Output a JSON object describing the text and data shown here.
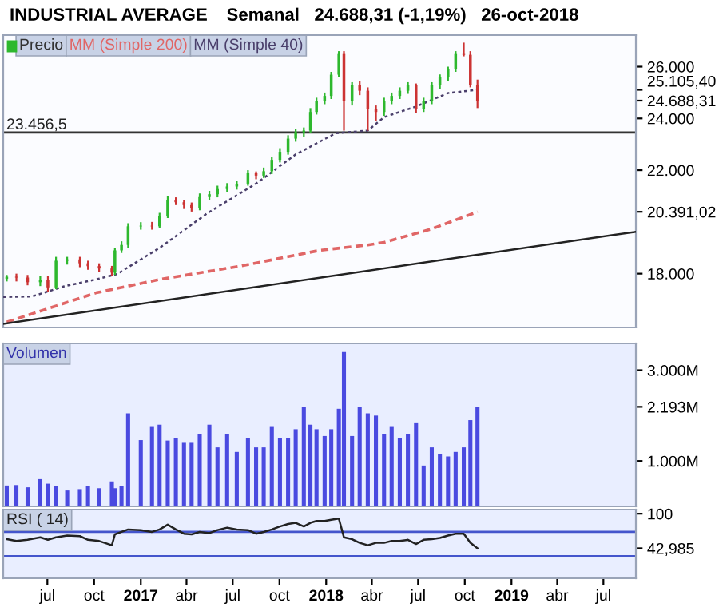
{
  "chart_data": [
    {
      "type": "candlestick",
      "title": "INDUSTRIAL AVERAGE",
      "subtitle": "Semanal   24.688,31 (-1,19%)   26-oct-2018",
      "legend": "top left",
      "tick_labels": "y",
      "x": [
        "2016-04-12",
        "2016-05-01",
        "2016-05-23",
        "2016-06-17",
        "2016-07-02",
        "2016-07-18",
        "2016-08-09",
        "2016-09-03",
        "2016-09-19",
        "2016-10-11",
        "2016-11-05",
        "2016-11-11",
        "2016-11-24",
        "2016-12-07",
        "2017-01-01",
        "2017-01-23",
        "2017-02-07",
        "2017-02-23",
        "2017-03-11",
        "2017-03-27",
        "2017-04-11",
        "2017-04-27",
        "2017-05-16",
        "2017-06-01",
        "2017-06-20",
        "2017-07-09",
        "2017-07-31",
        "2017-08-16",
        "2017-08-31",
        "2017-09-16",
        "2017-10-02",
        "2017-10-18",
        "2017-11-02",
        "2017-11-18",
        "2017-12-01",
        "2017-12-13",
        "2017-12-29",
        "2018-01-11",
        "2018-01-26",
        "2018-02-05",
        "2018-02-21",
        "2018-03-08",
        "2018-03-24",
        "2018-04-09",
        "2018-04-25",
        "2018-05-10",
        "2018-05-26",
        "2018-06-11",
        "2018-06-27",
        "2018-07-12",
        "2018-07-28",
        "2018-08-13",
        "2018-08-29",
        "2018-09-13",
        "2018-09-29",
        "2018-10-12",
        "2018-10-26"
      ],
      "series": [
        {
          "name": "Precio",
          "type": "candlestick",
          "ohlc": [
            [
              17800,
              17950,
              17700,
              17880
            ],
            [
              17880,
              18000,
              17700,
              17850
            ],
            [
              17850,
              17950,
              17550,
              17670
            ],
            [
              17670,
              17900,
              17520,
              17770
            ],
            [
              17770,
              17900,
              17300,
              17470
            ],
            [
              17470,
              18650,
              17400,
              18500
            ],
            [
              18500,
              18650,
              18350,
              18550
            ],
            [
              18550,
              18650,
              18250,
              18400
            ],
            [
              18400,
              18500,
              18150,
              18290
            ],
            [
              18290,
              18400,
              18050,
              18200
            ],
            [
              18200,
              18300,
              17900,
              18040
            ],
            [
              18040,
              19000,
              17950,
              18900
            ],
            [
              18900,
              19250,
              18800,
              19110
            ],
            [
              19110,
              19950,
              19000,
              19830
            ],
            [
              19830,
              19990,
              19700,
              19850
            ],
            [
              19850,
              20000,
              19700,
              19830
            ],
            [
              19830,
              20350,
              19750,
              20240
            ],
            [
              20240,
              21000,
              20150,
              20860
            ],
            [
              20860,
              20950,
              20650,
              20760
            ],
            [
              20760,
              20850,
              20500,
              20650
            ],
            [
              20650,
              20750,
              20400,
              20550
            ],
            [
              20550,
              21100,
              20450,
              20960
            ],
            [
              20960,
              21200,
              20850,
              21070
            ],
            [
              21070,
              21400,
              20950,
              21270
            ],
            [
              21270,
              21500,
              21150,
              21370
            ],
            [
              21370,
              21600,
              21250,
              21480
            ],
            [
              21480,
              22000,
              21400,
              21890
            ],
            [
              21890,
              21950,
              21650,
              21790
            ],
            [
              21790,
              22100,
              21700,
              21960
            ],
            [
              21960,
              22500,
              21850,
              22400
            ],
            [
              22400,
              22850,
              22300,
              22710
            ],
            [
              22710,
              23350,
              22600,
              23220
            ],
            [
              23220,
              23600,
              23100,
              23470
            ],
            [
              23470,
              23650,
              23300,
              23530
            ],
            [
              23530,
              24400,
              23450,
              24250
            ],
            [
              24250,
              24800,
              24150,
              24670
            ],
            [
              24670,
              25000,
              24550,
              24870
            ],
            [
              24870,
              25800,
              24750,
              25690
            ],
            [
              25690,
              26600,
              25600,
              26520
            ],
            [
              26520,
              26600,
              23530,
              24670
            ],
            [
              24670,
              25400,
              24500,
              25280
            ],
            [
              25280,
              25450,
              24900,
              25070
            ],
            [
              25070,
              25200,
              23530,
              24360
            ],
            [
              24360,
              24500,
              23900,
              24250
            ],
            [
              24250,
              24800,
              24100,
              24670
            ],
            [
              24670,
              25000,
              24550,
              24870
            ],
            [
              24870,
              25200,
              24750,
              25070
            ],
            [
              25070,
              25400,
              24950,
              25280
            ],
            [
              25280,
              25350,
              24200,
              24360
            ],
            [
              24360,
              24800,
              24250,
              24670
            ],
            [
              24670,
              25400,
              24550,
              25280
            ],
            [
              25280,
              25700,
              25150,
              25590
            ],
            [
              25590,
              26000,
              25450,
              25900
            ],
            [
              25900,
              26600,
              25800,
              26520
            ],
            [
              26520,
              26930,
              26400,
              26460
            ],
            [
              26460,
              26600,
              25200,
              25280
            ],
            [
              25280,
              25500,
              24400,
              24688.31
            ]
          ],
          "colors": [
            "#2eb82e",
            "#cc3333",
            "#cc3333",
            "#2eb82e",
            "#cc3333",
            "#2eb82e",
            "#2eb82e",
            "#cc3333",
            "#cc3333",
            "#cc3333",
            "#cc3333",
            "#2eb82e",
            "#2eb82e",
            "#2eb82e",
            "#2eb82e",
            "#cc3333",
            "#2eb82e",
            "#2eb82e",
            "#cc3333",
            "#cc3333",
            "#cc3333",
            "#2eb82e",
            "#2eb82e",
            "#2eb82e",
            "#2eb82e",
            "#2eb82e",
            "#2eb82e",
            "#cc3333",
            "#2eb82e",
            "#2eb82e",
            "#2eb82e",
            "#2eb82e",
            "#2eb82e",
            "#2eb82e",
            "#2eb82e",
            "#2eb82e",
            "#2eb82e",
            "#2eb82e",
            "#2eb82e",
            "#cc3333",
            "#2eb82e",
            "#cc3333",
            "#cc3333",
            "#cc3333",
            "#2eb82e",
            "#2eb82e",
            "#2eb82e",
            "#2eb82e",
            "#cc3333",
            "#2eb82e",
            "#2eb82e",
            "#2eb82e",
            "#2eb82e",
            "#2eb82e",
            "#cc3333",
            "#cc3333",
            "#cc3333"
          ]
        },
        {
          "name": "MM (Simple 200)",
          "type": "line",
          "color": "#e06666",
          "line_style": "dashed",
          "x": [
            "2016-04-12",
            "2016-10-05",
            "2017-02-08",
            "2017-07-15",
            "2017-12-19",
            "2018-03-24",
            "2018-04-25",
            "2018-07-28",
            "2018-10-26"
          ],
          "values": [
            16130,
            17260,
            17780,
            18290,
            18900,
            19110,
            19210,
            19730,
            20391.02
          ]
        },
        {
          "name": "MM (Simple 40)",
          "type": "line",
          "color": "#4a3f6b",
          "line_style": "dotted",
          "x": [
            "2016-04-05",
            "2016-06-01",
            "2016-08-03",
            "2016-10-05",
            "2016-11-15",
            "2017-02-08",
            "2017-05-13",
            "2017-08-16",
            "2017-11-02",
            "2018-01-20",
            "2018-03-24",
            "2018-04-25",
            "2018-06-27",
            "2018-08-29",
            "2018-10-26"
          ],
          "values": [
            17100,
            17120,
            17510,
            17780,
            17980,
            19010,
            20350,
            21480,
            22610,
            23430,
            23530,
            24050,
            24460,
            24980,
            25105.4
          ]
        },
        {
          "type": "line",
          "color": "#222222",
          "line_style": "solid",
          "x": [
            "2016-04-05",
            "2019-09-03"
          ],
          "values": [
            16060,
            19620
          ]
        }
      ],
      "ref_lines": [
        {
          "axis": "y",
          "value": 23456.5,
          "label": "23.456,5",
          "color": "#333333"
        }
      ],
      "xlim": [
        "2016-04-05",
        "2019-09-03"
      ],
      "ylim": [
        15920,
        27220
      ],
      "yticks": [
        {
          "value": 18000,
          "label": "18.000"
        },
        {
          "value": 20391.02,
          "label": "20.391,02"
        },
        {
          "value": 22000,
          "label": "22.000"
        },
        {
          "value": 24000,
          "label": "24.000"
        },
        {
          "value": 24688.31,
          "label": "24.688,31"
        },
        {
          "value": 25105.4,
          "label": "25.105,40"
        },
        {
          "value": 26000,
          "label": "26.000"
        }
      ]
    },
    {
      "type": "bar",
      "legend": "top left",
      "tick_labels": "y",
      "x": [
        "2016-04-12",
        "2016-05-01",
        "2016-05-23",
        "2016-06-17",
        "2016-07-02",
        "2016-07-18",
        "2016-08-09",
        "2016-09-03",
        "2016-09-19",
        "2016-10-11",
        "2016-11-05",
        "2016-11-11",
        "2016-11-24",
        "2016-12-07",
        "2017-01-01",
        "2017-01-23",
        "2017-02-07",
        "2017-02-23",
        "2017-03-11",
        "2017-03-27",
        "2017-04-11",
        "2017-04-27",
        "2017-05-16",
        "2017-06-01",
        "2017-06-20",
        "2017-07-09",
        "2017-07-31",
        "2017-08-16",
        "2017-08-31",
        "2017-09-16",
        "2017-10-02",
        "2017-10-18",
        "2017-11-02",
        "2017-11-18",
        "2017-12-01",
        "2017-12-13",
        "2017-12-29",
        "2018-01-11",
        "2018-01-26",
        "2018-02-05",
        "2018-02-21",
        "2018-03-08",
        "2018-03-24",
        "2018-04-09",
        "2018-04-25",
        "2018-05-10",
        "2018-05-26",
        "2018-06-11",
        "2018-06-27",
        "2018-07-12",
        "2018-07-28",
        "2018-08-13",
        "2018-08-29",
        "2018-09-13",
        "2018-09-29",
        "2018-10-12",
        "2018-10-26"
      ],
      "series": [
        {
          "name": "Volumen",
          "color": "#4a4ae0",
          "values": [
            460,
            470,
            420,
            600,
            500,
            450,
            350,
            380,
            450,
            400,
            550,
            400,
            450,
            2050,
            1460,
            1750,
            1800,
            1450,
            1500,
            1400,
            1400,
            1600,
            1800,
            1300,
            1600,
            1200,
            1500,
            1300,
            1300,
            1750,
            1500,
            1500,
            1700,
            2200,
            1800,
            1700,
            1550,
            1700,
            2150,
            3400,
            1550,
            2200,
            2050,
            2000,
            1600,
            1750,
            1500,
            1600,
            1850,
            900,
            1300,
            1150,
            1100,
            1200,
            1300,
            1900,
            2193
          ]
        }
      ],
      "xlim": [
        "2016-04-05",
        "2019-09-03"
      ],
      "ylim": [
        0,
        3590
      ],
      "yticks": [
        {
          "value": 1000,
          "label": "1.000M"
        },
        {
          "value": 2193,
          "label": "2.193M"
        },
        {
          "value": 3000,
          "label": "3.000M"
        }
      ]
    },
    {
      "type": "line",
      "legend": "top left",
      "x": [
        "2016-04-12",
        "2016-05-01",
        "2016-05-23",
        "2016-06-17",
        "2016-07-02",
        "2016-07-18",
        "2016-08-09",
        "2016-09-03",
        "2016-09-19",
        "2016-10-11",
        "2016-11-05",
        "2016-11-11",
        "2016-11-24",
        "2016-12-07",
        "2017-01-01",
        "2017-01-23",
        "2017-02-07",
        "2017-02-23",
        "2017-03-11",
        "2017-03-27",
        "2017-04-11",
        "2017-04-27",
        "2017-05-16",
        "2017-06-01",
        "2017-06-20",
        "2017-07-09",
        "2017-07-31",
        "2017-08-16",
        "2017-08-31",
        "2017-09-16",
        "2017-10-02",
        "2017-10-18",
        "2017-11-02",
        "2017-11-18",
        "2017-12-01",
        "2017-12-13",
        "2017-12-29",
        "2018-01-11",
        "2018-01-26",
        "2018-02-05",
        "2018-02-21",
        "2018-03-08",
        "2018-03-24",
        "2018-04-09",
        "2018-04-25",
        "2018-05-10",
        "2018-05-26",
        "2018-06-11",
        "2018-06-27",
        "2018-07-12",
        "2018-07-28",
        "2018-08-13",
        "2018-08-29",
        "2018-09-13",
        "2018-09-29",
        "2018-10-12",
        "2018-10-26"
      ],
      "series": [
        {
          "name": "RSI ( 14)",
          "color": "#222222",
          "values": [
            58,
            55,
            57,
            61,
            57,
            61,
            64,
            63,
            57,
            55,
            48,
            66,
            70,
            74,
            73,
            70,
            74,
            82,
            74,
            67,
            66,
            70,
            68,
            73,
            77,
            74,
            73,
            67,
            70,
            74,
            79,
            83,
            85,
            79,
            85,
            88,
            88,
            90,
            92,
            61,
            58,
            52,
            48,
            52,
            52,
            55,
            55,
            57,
            50,
            57,
            58,
            60,
            64,
            67,
            67,
            52,
            42.985
          ]
        }
      ],
      "ref_lines": [
        {
          "axis": "y",
          "value": 70,
          "color": "#4455cc"
        },
        {
          "axis": "y",
          "value": 30,
          "color": "#4455cc"
        }
      ],
      "xlim": [
        "2016-04-05",
        "2019-09-03"
      ],
      "ylim": [
        -6.5,
        106.8
      ],
      "yticks": [
        {
          "value": 42.985,
          "label": "42,985"
        },
        100
      ],
      "xticks": [
        {
          "value": "2016-07-01",
          "label": "jul"
        },
        {
          "value": "2016-10-01",
          "label": "oct"
        },
        {
          "value": "2017-01-01",
          "label": "2017"
        },
        {
          "value": "2017-04-01",
          "label": "abr"
        },
        {
          "value": "2017-07-01",
          "label": "jul"
        },
        {
          "value": "2017-10-01",
          "label": "oct"
        },
        {
          "value": "2018-01-01",
          "label": "2018"
        },
        {
          "value": "2018-04-01",
          "label": "abr"
        },
        {
          "value": "2018-07-01",
          "label": "jul"
        },
        {
          "value": "2018-10-01",
          "label": "oct"
        },
        {
          "value": "2019-01-01",
          "label": "2019"
        },
        {
          "value": "2019-04-01",
          "label": "abr"
        },
        {
          "value": "2019-07-01",
          "label": "jul"
        }
      ]
    }
  ]
}
